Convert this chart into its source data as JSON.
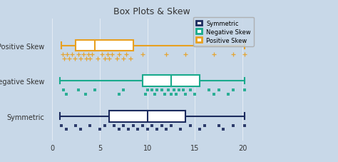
{
  "title": "Box Plots & Skew",
  "background_color": "#c8d8e8",
  "xlim": [
    -0.5,
    21.5
  ],
  "xticks": [
    0,
    5,
    10,
    15,
    20
  ],
  "ytick_labels": [
    "Positive Skew",
    "Negative Skew",
    "Symmetric"
  ],
  "boxes": [
    {
      "label": "Positive Skew",
      "color": "#e8a020",
      "whislo": 1.0,
      "q1": 2.5,
      "med": 4.5,
      "q3": 8.5,
      "whishi": 20.2,
      "marker": "+",
      "fliers_row1": [
        1.1,
        1.6,
        2.1,
        2.8,
        3.3,
        3.8,
        4.2,
        5.2,
        5.8,
        6.3,
        7.0,
        7.8,
        9.5,
        12.0,
        14.0,
        17.0,
        19.0,
        20.2
      ],
      "fliers_row2": [
        1.3,
        1.8,
        2.4,
        3.0,
        3.6,
        4.0,
        4.8,
        5.5,
        6.0,
        6.8,
        7.5,
        8.2
      ]
    },
    {
      "label": "Negative Skew",
      "color": "#1aaa8c",
      "whislo": 0.8,
      "q1": 9.5,
      "med": 12.5,
      "q3": 15.5,
      "whishi": 20.2,
      "marker": "s",
      "fliers_row1": [
        1.2,
        2.8,
        4.5,
        7.5,
        10.0,
        10.5,
        11.0,
        11.5,
        12.2,
        12.8,
        13.3,
        13.8,
        14.5,
        16.5,
        17.5,
        19.0,
        20.2
      ],
      "fliers_row2": [
        1.5,
        3.5,
        7.0,
        9.8,
        10.8,
        11.8,
        12.5,
        13.0,
        14.0,
        15.0,
        17.0,
        18.5
      ]
    },
    {
      "label": "Symmetric",
      "color": "#1c2b5e",
      "whislo": 0.8,
      "q1": 6.0,
      "med": 10.0,
      "q3": 14.0,
      "whishi": 20.2,
      "marker": "s",
      "fliers_row1": [
        1.0,
        2.5,
        4.0,
        5.5,
        6.5,
        7.5,
        8.5,
        9.5,
        10.5,
        11.5,
        12.5,
        14.5,
        16.0,
        17.5,
        19.0,
        20.2
      ],
      "fliers_row2": [
        1.5,
        3.0,
        5.0,
        7.0,
        8.0,
        9.0,
        10.0,
        11.0,
        12.0,
        13.5,
        15.5,
        18.0
      ]
    }
  ],
  "legend_labels": [
    "Symmetric",
    "Negative Skew",
    "Positive Skew"
  ],
  "legend_colors": [
    "#1c2b5e",
    "#1aaa8c",
    "#e8a020"
  ],
  "title_fontsize": 9,
  "label_fontsize": 7,
  "tick_fontsize": 7
}
